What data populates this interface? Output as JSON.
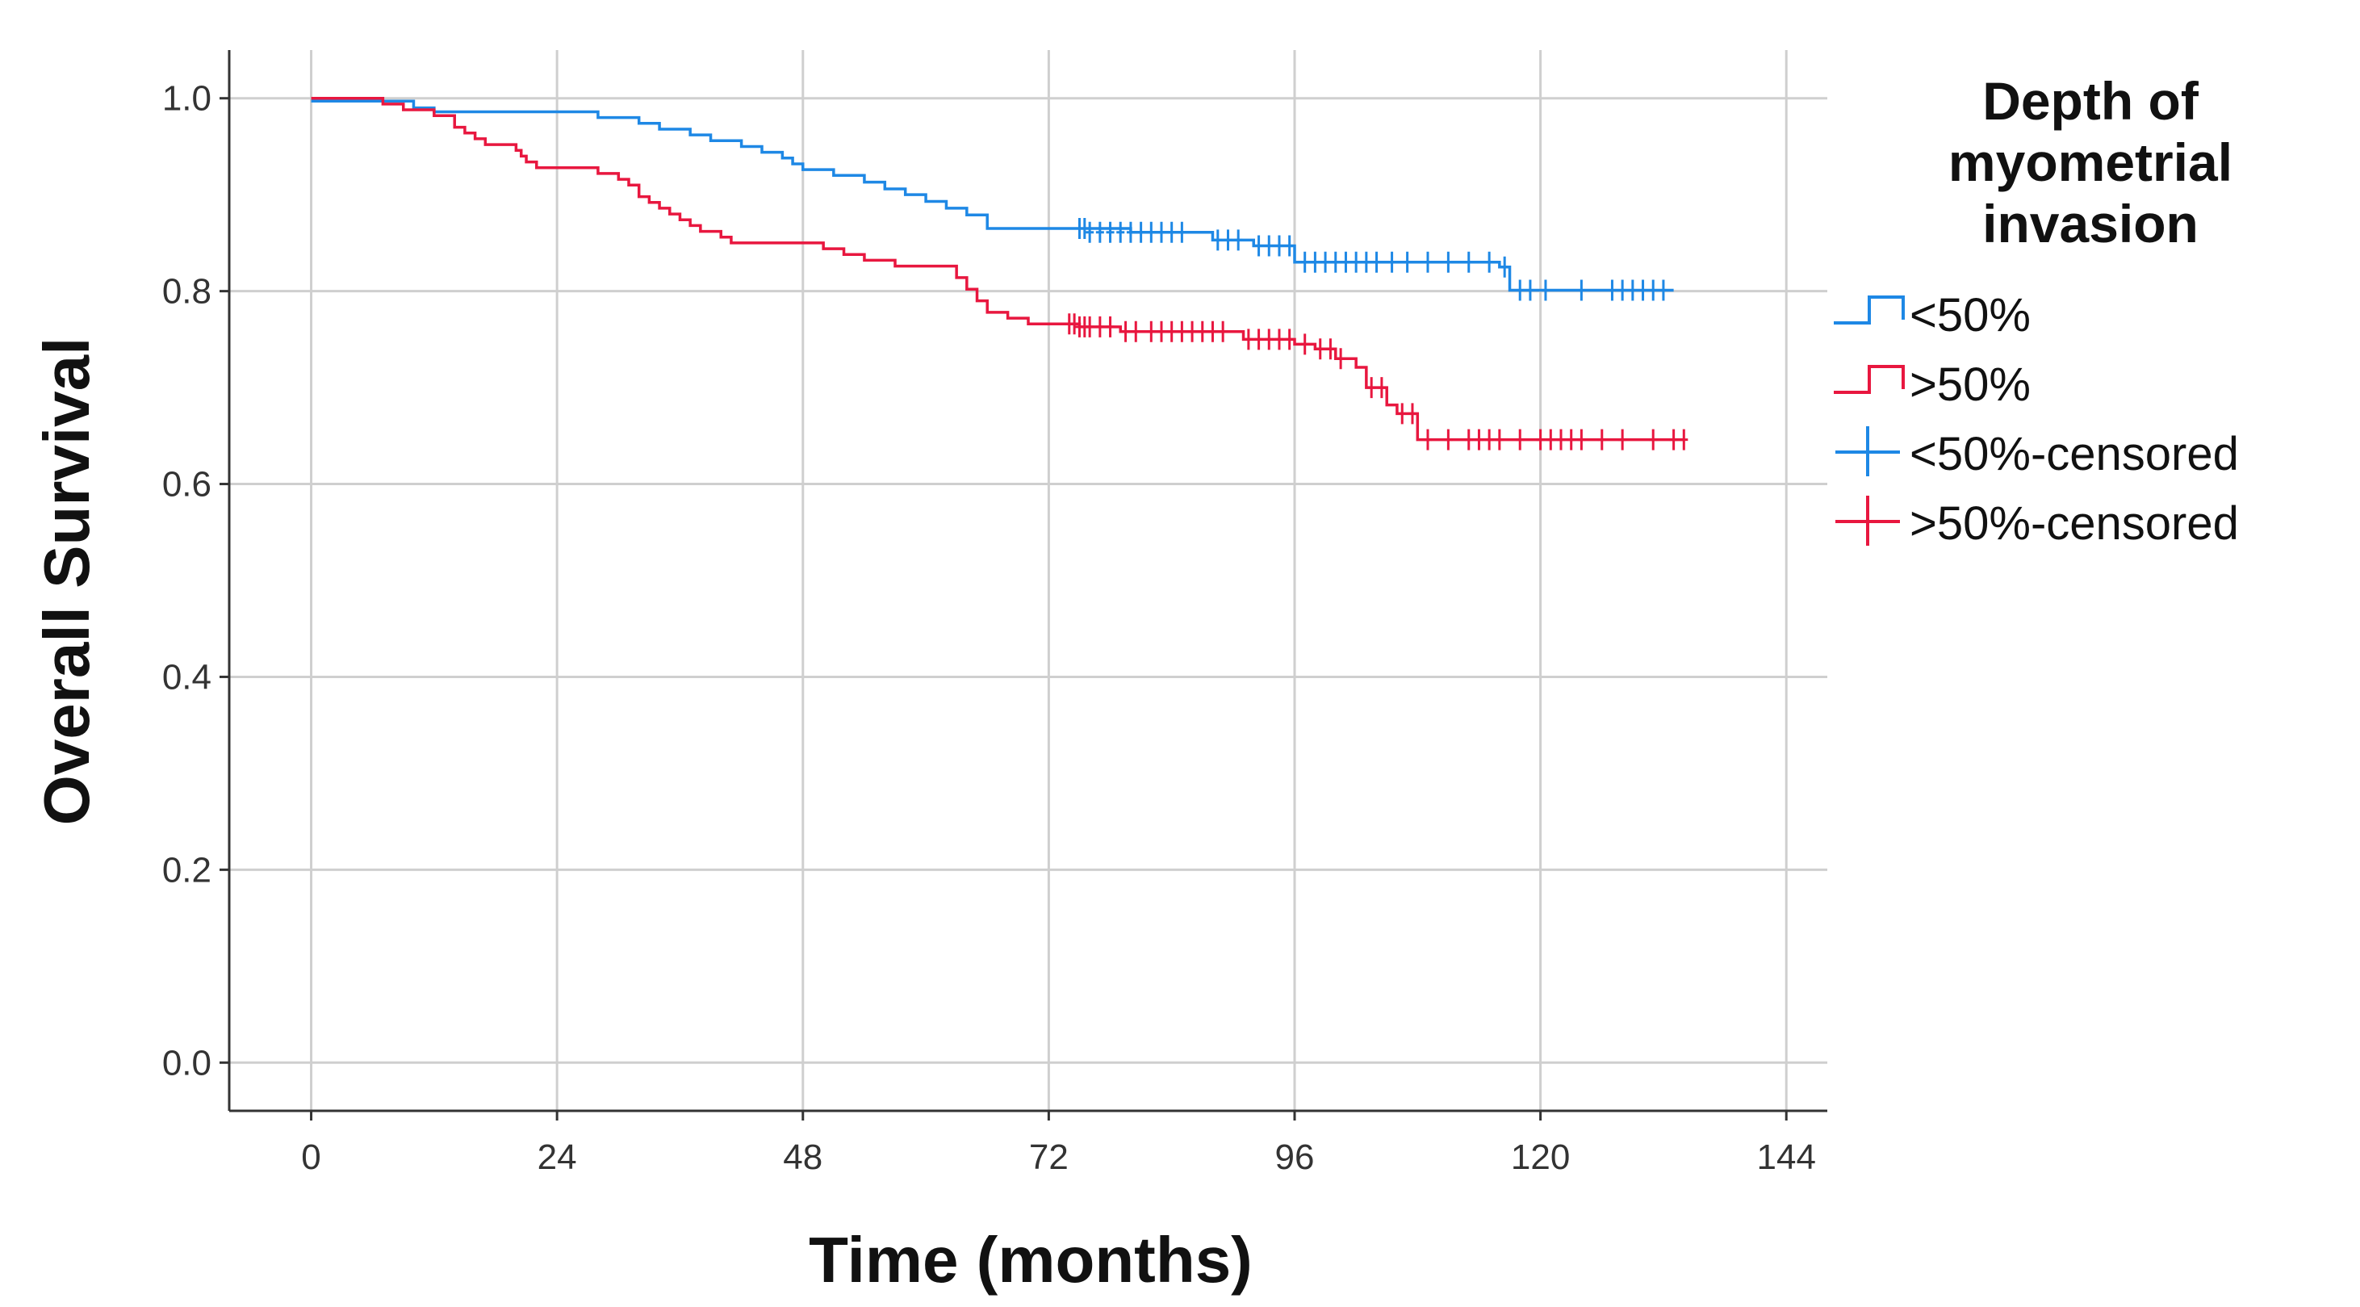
{
  "chart_data": {
    "type": "line",
    "subtype": "kaplan-meier step",
    "xlabel": "Time (months)",
    "ylabel": "Overall Survival",
    "xlim": [
      -8,
      148
    ],
    "ylim": [
      -0.05,
      1.05
    ],
    "xticks": [
      0,
      24,
      48,
      72,
      96,
      120,
      144
    ],
    "yticks": [
      0.0,
      0.2,
      0.4,
      0.6,
      0.8,
      1.0
    ],
    "xtick_labels": [
      "0",
      "24",
      "48",
      "72",
      "96",
      "120",
      "144"
    ],
    "ytick_labels": [
      "0.0",
      "0.2",
      "0.4",
      "0.6",
      "0.8",
      "1.0"
    ],
    "grid": true,
    "legend": {
      "title_lines": [
        "Depth of",
        "myometrial",
        "invasion"
      ],
      "placement": "right",
      "entries": [
        {
          "label": "<50%",
          "kind": "step",
          "color": "#1e88e5"
        },
        {
          "label": ">50%",
          "kind": "step",
          "color": "#e8173f"
        },
        {
          "label": "<50%-censored",
          "kind": "censor",
          "color": "#1e88e5"
        },
        {
          "label": ">50%-censored",
          "kind": "censor",
          "color": "#e8173f"
        }
      ]
    },
    "series": [
      {
        "name": "<50%",
        "color": "#1e88e5",
        "steps": [
          [
            0,
            0.997
          ],
          [
            10,
            0.99
          ],
          [
            12,
            0.986
          ],
          [
            28,
            0.98
          ],
          [
            32,
            0.974
          ],
          [
            34,
            0.968
          ],
          [
            37,
            0.962
          ],
          [
            39,
            0.956
          ],
          [
            42,
            0.95
          ],
          [
            44,
            0.944
          ],
          [
            46,
            0.938
          ],
          [
            47,
            0.932
          ],
          [
            48,
            0.926
          ],
          [
            51,
            0.92
          ],
          [
            54,
            0.913
          ],
          [
            56,
            0.906
          ],
          [
            58,
            0.9
          ],
          [
            60,
            0.893
          ],
          [
            62,
            0.886
          ],
          [
            64,
            0.879
          ],
          [
            66,
            0.865
          ],
          [
            80,
            0.861
          ],
          [
            88,
            0.853
          ],
          [
            92,
            0.847
          ],
          [
            96,
            0.83
          ],
          [
            116,
            0.825
          ],
          [
            117,
            0.801
          ],
          [
            133,
            0.801
          ]
        ],
        "censored": [
          [
            75,
            0.865
          ],
          [
            75.5,
            0.865
          ],
          [
            76,
            0.861
          ],
          [
            77,
            0.861
          ],
          [
            78,
            0.861
          ],
          [
            79,
            0.861
          ],
          [
            80,
            0.861
          ],
          [
            81,
            0.861
          ],
          [
            82,
            0.861
          ],
          [
            83,
            0.861
          ],
          [
            84,
            0.861
          ],
          [
            85,
            0.861
          ],
          [
            88.5,
            0.853
          ],
          [
            89.5,
            0.853
          ],
          [
            90.5,
            0.853
          ],
          [
            92.5,
            0.847
          ],
          [
            93.5,
            0.847
          ],
          [
            94.5,
            0.847
          ],
          [
            95.5,
            0.847
          ],
          [
            97,
            0.83
          ],
          [
            98,
            0.83
          ],
          [
            99,
            0.83
          ],
          [
            100,
            0.83
          ],
          [
            101,
            0.83
          ],
          [
            102,
            0.83
          ],
          [
            103,
            0.83
          ],
          [
            104,
            0.83
          ],
          [
            105.5,
            0.83
          ],
          [
            107,
            0.83
          ],
          [
            109,
            0.83
          ],
          [
            111,
            0.83
          ],
          [
            113,
            0.83
          ],
          [
            115,
            0.83
          ],
          [
            116.5,
            0.825
          ],
          [
            118,
            0.801
          ],
          [
            119,
            0.801
          ],
          [
            120.5,
            0.801
          ],
          [
            124,
            0.801
          ],
          [
            127,
            0.801
          ],
          [
            128,
            0.801
          ],
          [
            129,
            0.801
          ],
          [
            130,
            0.801
          ],
          [
            131,
            0.801
          ],
          [
            132,
            0.801
          ]
        ]
      },
      {
        "name": ">50%",
        "color": "#e8173f",
        "steps": [
          [
            0,
            1.0
          ],
          [
            7,
            0.994
          ],
          [
            9,
            0.988
          ],
          [
            12,
            0.982
          ],
          [
            14,
            0.97
          ],
          [
            15,
            0.964
          ],
          [
            16,
            0.958
          ],
          [
            17,
            0.952
          ],
          [
            20,
            0.946
          ],
          [
            20.5,
            0.94
          ],
          [
            21,
            0.934
          ],
          [
            22,
            0.928
          ],
          [
            28,
            0.922
          ],
          [
            30,
            0.916
          ],
          [
            31,
            0.91
          ],
          [
            32,
            0.898
          ],
          [
            33,
            0.892
          ],
          [
            34,
            0.886
          ],
          [
            35,
            0.88
          ],
          [
            36,
            0.874
          ],
          [
            37,
            0.868
          ],
          [
            38,
            0.862
          ],
          [
            40,
            0.856
          ],
          [
            41,
            0.85
          ],
          [
            50,
            0.844
          ],
          [
            52,
            0.838
          ],
          [
            54,
            0.832
          ],
          [
            57,
            0.826
          ],
          [
            63,
            0.814
          ],
          [
            64,
            0.802
          ],
          [
            65,
            0.79
          ],
          [
            66,
            0.778
          ],
          [
            68,
            0.772
          ],
          [
            70,
            0.766
          ],
          [
            75,
            0.763
          ],
          [
            79,
            0.758
          ],
          [
            91,
            0.75
          ],
          [
            96,
            0.745
          ],
          [
            98,
            0.74
          ],
          [
            100,
            0.73
          ],
          [
            102,
            0.721
          ],
          [
            103,
            0.7
          ],
          [
            105,
            0.682
          ],
          [
            106,
            0.673
          ],
          [
            108,
            0.646
          ],
          [
            134,
            0.646
          ]
        ],
        "censored": [
          [
            74,
            0.766
          ],
          [
            74.5,
            0.766
          ],
          [
            75,
            0.763
          ],
          [
            75.5,
            0.763
          ],
          [
            76,
            0.763
          ],
          [
            77,
            0.763
          ],
          [
            78,
            0.763
          ],
          [
            79.5,
            0.758
          ],
          [
            80.5,
            0.758
          ],
          [
            82,
            0.758
          ],
          [
            83,
            0.758
          ],
          [
            84,
            0.758
          ],
          [
            85,
            0.758
          ],
          [
            86,
            0.758
          ],
          [
            87,
            0.758
          ],
          [
            88,
            0.758
          ],
          [
            89,
            0.758
          ],
          [
            91.5,
            0.75
          ],
          [
            92.5,
            0.75
          ],
          [
            93.5,
            0.75
          ],
          [
            94.5,
            0.75
          ],
          [
            95.5,
            0.75
          ],
          [
            97,
            0.745
          ],
          [
            98.5,
            0.74
          ],
          [
            99.5,
            0.74
          ],
          [
            100.5,
            0.73
          ],
          [
            103.5,
            0.7
          ],
          [
            104.5,
            0.7
          ],
          [
            106.5,
            0.673
          ],
          [
            107.5,
            0.673
          ],
          [
            109,
            0.646
          ],
          [
            111,
            0.646
          ],
          [
            113,
            0.646
          ],
          [
            114,
            0.646
          ],
          [
            115,
            0.646
          ],
          [
            116,
            0.646
          ],
          [
            118,
            0.646
          ],
          [
            120,
            0.646
          ],
          [
            121,
            0.646
          ],
          [
            122,
            0.646
          ],
          [
            123,
            0.646
          ],
          [
            124,
            0.646
          ],
          [
            126,
            0.646
          ],
          [
            128,
            0.646
          ],
          [
            131,
            0.646
          ],
          [
            133,
            0.646
          ],
          [
            134,
            0.646
          ]
        ]
      }
    ]
  }
}
